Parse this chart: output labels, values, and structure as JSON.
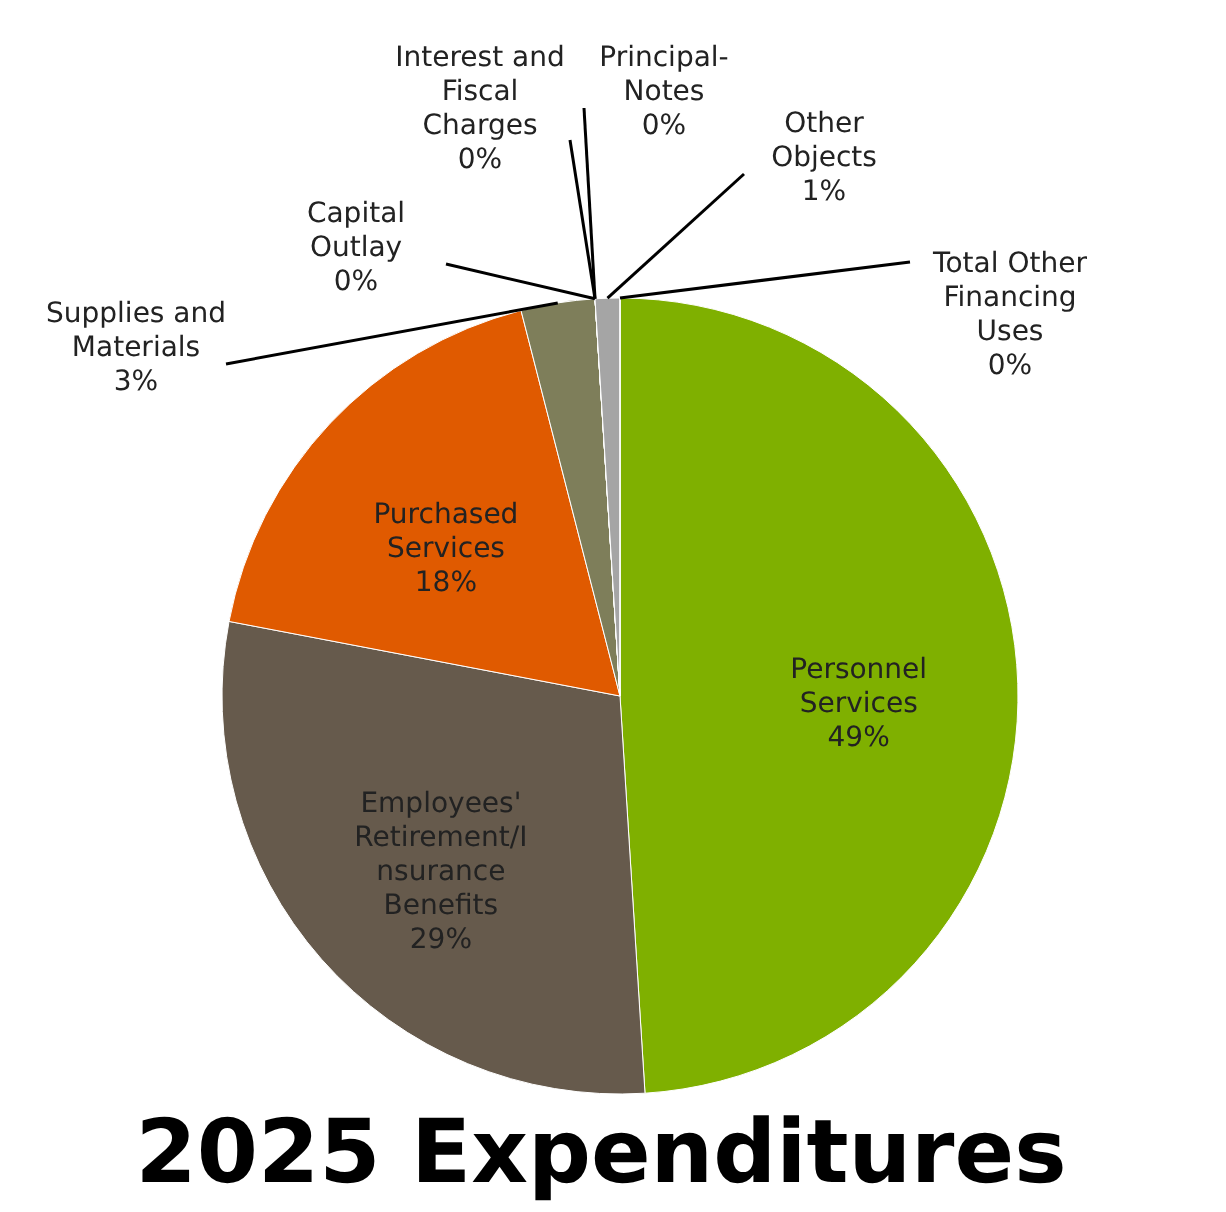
{
  "chart_data": {
    "type": "pie",
    "title": "2025 Expenditures",
    "categories": [
      "Personnel\nServices",
      "Employees'\nRetirement/I\nnsurance\nBenefits",
      "Purchased\nServices",
      "Supplies and\nMaterials",
      "Capital\nOutlay",
      "Interest and\nFiscal\nCharges",
      "Principal-\nNotes",
      "Other\nObjects",
      "Total Other\nFinancing\nUses"
    ],
    "values": [
      49,
      29,
      18,
      3,
      0,
      0,
      0,
      1,
      0
    ],
    "value_labels": [
      "49%",
      "29%",
      "18%",
      "3%",
      "0%",
      "0%",
      "0%",
      "1%",
      "0%"
    ],
    "colors": [
      "#7fb000",
      "#665a4c",
      "#e05a00",
      "#7e7e5a",
      "#c8a000",
      "#4d4d4d",
      "#8a8a8a",
      "#a5a5a5",
      "#f08060"
    ]
  }
}
